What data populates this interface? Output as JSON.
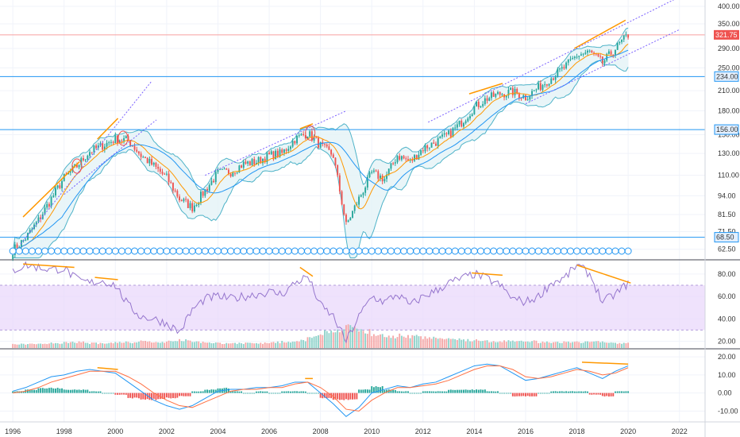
{
  "chart_data": [
    {
      "type": "candlestick",
      "panel": "price",
      "title": "",
      "ylabel": "",
      "y_scale": "log",
      "ylim": [
        58,
        420
      ],
      "yticks": [
        "400.00",
        "350.00",
        "290.00",
        "250.00",
        "210.00",
        "180.00",
        "150.00",
        "130.00",
        "110.00",
        "94.00",
        "81.50",
        "71.50",
        "62.50"
      ],
      "xlim": [
        1995.5,
        2023
      ],
      "xticks": [
        "1996",
        "1998",
        "2000",
        "2002",
        "2004",
        "2006",
        "2008",
        "2010",
        "2012",
        "2014",
        "2016",
        "2018",
        "2020",
        "2022"
      ],
      "last_price": "321.75",
      "last_price_color": "#ef5350",
      "up_color": "#26a69a",
      "down_color": "#ef5350",
      "horizontal_levels": [
        {
          "label": "234.00",
          "value": 234,
          "color": "#2196f3"
        },
        {
          "label": "156.00",
          "value": 156,
          "color": "#2196f3"
        },
        {
          "label": "68.50",
          "value": 68.5,
          "color": "#2196f3"
        }
      ],
      "trendlines": [
        {
          "color": "#ff9800",
          "style": "solid",
          "from": [
            1996.4,
            80
          ],
          "to": [
            1998.6,
            122
          ]
        },
        {
          "color": "#ff9800",
          "style": "solid",
          "from": [
            1999.3,
            145
          ],
          "to": [
            2000.1,
            170
          ]
        },
        {
          "color": "#ff9800",
          "style": "solid",
          "from": [
            2007.2,
            157
          ],
          "to": [
            2007.7,
            163
          ]
        },
        {
          "color": "#ff9800",
          "style": "solid",
          "from": [
            2013.8,
            205
          ],
          "to": [
            2015.1,
            222
          ]
        },
        {
          "color": "#ff9800",
          "style": "solid",
          "from": [
            2017.9,
            290
          ],
          "to": [
            2019.9,
            360
          ]
        },
        {
          "color": "#7b61ff",
          "style": "dotted",
          "from": [
            1996.3,
            65
          ],
          "to": [
            2001.4,
            225
          ]
        },
        {
          "color": "#7b61ff",
          "style": "dotted",
          "from": [
            1998.0,
            95
          ],
          "to": [
            2001.6,
            168
          ]
        },
        {
          "color": "#7b61ff",
          "style": "dotted",
          "from": [
            2003.5,
            110
          ],
          "to": [
            2009.0,
            180
          ]
        },
        {
          "color": "#7b61ff",
          "style": "dotted",
          "from": [
            2012.2,
            165
          ],
          "to": [
            2022.0,
            430
          ]
        },
        {
          "color": "#7b61ff",
          "style": "dotted",
          "from": [
            2016.0,
            190
          ],
          "to": [
            2022.0,
            335
          ]
        }
      ],
      "circles": [
        {
          "x": 1998.5,
          "y": 118
        },
        {
          "x": 2000.3,
          "y": 146
        },
        {
          "x": 2007.6,
          "y": 152
        }
      ],
      "series": [
        {
          "name": "",
          "x": [
            1996.0,
            1996.5,
            1997.0,
            1997.5,
            1998.0,
            1998.5,
            1999.0,
            1999.5,
            2000.0,
            2000.5,
            2001.0,
            2001.5,
            2002.0,
            2002.5,
            2003.0,
            2003.5,
            2004.0,
            2004.5,
            2005.0,
            2005.5,
            2006.0,
            2006.5,
            2007.0,
            2007.5,
            2008.0,
            2008.5,
            2009.0,
            2009.5,
            2010.0,
            2010.5,
            2011.0,
            2011.5,
            2012.0,
            2012.5,
            2013.0,
            2013.5,
            2014.0,
            2014.5,
            2015.0,
            2015.5,
            2016.0,
            2016.5,
            2017.0,
            2017.5,
            2018.0,
            2018.5,
            2019.0,
            2019.5,
            2020.0
          ],
          "close": [
            62,
            68,
            78,
            92,
            108,
            118,
            132,
            138,
            145,
            144,
            128,
            118,
            108,
            92,
            86,
            98,
            112,
            113,
            120,
            122,
            128,
            130,
            145,
            152,
            138,
            128,
            75,
            92,
            112,
            107,
            128,
            122,
            135,
            142,
            150,
            165,
            185,
            198,
            205,
            208,
            200,
            215,
            232,
            250,
            275,
            282,
            260,
            290,
            321.75
          ]
        },
        {
          "name": "",
          "type": "line",
          "role": "moving-average-20",
          "color": "#ff9800"
        },
        {
          "name": "",
          "type": "line",
          "role": "moving-average-50",
          "color": "#2196f3"
        },
        {
          "name": "",
          "type": "band",
          "role": "bollinger-bands",
          "color": "#4fb3c8",
          "fill": "#e3f3f6"
        }
      ]
    },
    {
      "type": "line",
      "panel": "oscillator",
      "title": "",
      "ylabel": "",
      "ylim": [
        14,
        92
      ],
      "yticks": [
        "80.00",
        "60.00",
        "40.00",
        "20.00"
      ],
      "band": [
        30,
        70
      ],
      "band_color": "#e8d5fb",
      "line_color": "#9575cd",
      "x": [
        1996.0,
        1996.5,
        1997.0,
        1997.5,
        1998.0,
        1998.5,
        1999.0,
        1999.5,
        2000.0,
        2000.5,
        2001.0,
        2001.5,
        2002.0,
        2002.5,
        2003.0,
        2003.5,
        2004.0,
        2004.5,
        2005.0,
        2005.5,
        2006.0,
        2006.5,
        2007.0,
        2007.5,
        2008.0,
        2008.5,
        2009.0,
        2009.5,
        2010.0,
        2010.5,
        2011.0,
        2011.5,
        2012.0,
        2012.5,
        2013.0,
        2013.5,
        2014.0,
        2014.5,
        2015.0,
        2015.5,
        2016.0,
        2016.5,
        2017.0,
        2017.5,
        2018.0,
        2018.5,
        2019.0,
        2019.5,
        2020.0
      ],
      "values": [
        83,
        88,
        86,
        84,
        85,
        75,
        72,
        74,
        70,
        52,
        42,
        40,
        36,
        28,
        48,
        58,
        60,
        58,
        60,
        62,
        64,
        62,
        72,
        78,
        52,
        42,
        20,
        42,
        60,
        55,
        62,
        52,
        60,
        65,
        72,
        76,
        80,
        76,
        70,
        58,
        55,
        60,
        72,
        76,
        88,
        80,
        55,
        62,
        72
      ],
      "divergences": [
        {
          "color": "#ff9800",
          "from": [
            1996.4,
            89
          ],
          "to": [
            1998.4,
            86
          ]
        },
        {
          "color": "#ff9800",
          "from": [
            1999.2,
            77
          ],
          "to": [
            2000.1,
            75
          ]
        },
        {
          "color": "#ff9800",
          "from": [
            2007.2,
            86
          ],
          "to": [
            2007.7,
            78
          ]
        },
        {
          "color": "#ff9800",
          "from": [
            2013.9,
            81
          ],
          "to": [
            2015.1,
            79
          ]
        },
        {
          "color": "#ff9800",
          "from": [
            2018.0,
            88
          ],
          "to": [
            2020.1,
            72
          ]
        }
      ],
      "volume": [
        4,
        4,
        5,
        5,
        6,
        6,
        5,
        5,
        6,
        6,
        7,
        6,
        7,
        8,
        6,
        6,
        5,
        5,
        5,
        5,
        6,
        7,
        8,
        12,
        16,
        19,
        22,
        17,
        14,
        12,
        13,
        12,
        11,
        10,
        9,
        8,
        8,
        7,
        7,
        7,
        7,
        6,
        6,
        6,
        6,
        7,
        6,
        5,
        5
      ]
    },
    {
      "type": "line",
      "panel": "momentum",
      "title": "",
      "ylabel": "",
      "ylim": [
        -16,
        24
      ],
      "yticks": [
        "20.00",
        "10.00",
        "0.00",
        "-10.00"
      ],
      "x": [
        1996.0,
        1996.5,
        1997.0,
        1997.5,
        1998.0,
        1998.5,
        1999.0,
        1999.5,
        2000.0,
        2000.5,
        2001.0,
        2001.5,
        2002.0,
        2002.5,
        2003.0,
        2003.5,
        2004.0,
        2004.5,
        2005.0,
        2005.5,
        2006.0,
        2006.5,
        2007.0,
        2007.5,
        2008.0,
        2008.5,
        2009.0,
        2009.5,
        2010.0,
        2010.5,
        2011.0,
        2011.5,
        2012.0,
        2012.5,
        2013.0,
        2013.5,
        2014.0,
        2014.5,
        2015.0,
        2015.5,
        2016.0,
        2016.5,
        2017.0,
        2017.5,
        2018.0,
        2018.5,
        2019.0,
        2019.5,
        2020.0
      ],
      "series": [
        {
          "name": "",
          "color": "#2196f3",
          "values": [
            1,
            3,
            6,
            9,
            10,
            12,
            13,
            12,
            11,
            6,
            1,
            -4,
            -7,
            -9,
            -7,
            -3,
            1,
            2,
            2,
            3,
            3,
            4,
            6,
            6,
            0,
            -6,
            -13,
            -8,
            0,
            2,
            4,
            3,
            5,
            6,
            9,
            12,
            15,
            16,
            15,
            11,
            7,
            8,
            10,
            12,
            14,
            11,
            8,
            12,
            15
          ]
        },
        {
          "name": "",
          "color": "#ff7043",
          "values": [
            0,
            1,
            3,
            6,
            8,
            10,
            12,
            12,
            12,
            9,
            5,
            0,
            -4,
            -7,
            -8,
            -5,
            -2,
            1,
            2,
            2,
            3,
            3,
            5,
            6,
            3,
            -2,
            -9,
            -10,
            -4,
            0,
            3,
            3,
            4,
            5,
            7,
            10,
            13,
            15,
            15,
            13,
            9,
            8,
            9,
            11,
            13,
            12,
            10,
            11,
            14
          ]
        }
      ],
      "histogram": [
        1,
        2,
        3,
        3,
        2,
        2,
        1,
        0,
        -1,
        -3,
        -4,
        -4,
        -3,
        -2,
        1,
        2,
        3,
        1,
        0,
        1,
        0,
        1,
        1,
        0,
        -3,
        -4,
        -4,
        2,
        4,
        2,
        1,
        0,
        1,
        1,
        2,
        2,
        2,
        1,
        0,
        -2,
        -2,
        0,
        1,
        1,
        1,
        -1,
        -2,
        1,
        1
      ],
      "divergences": [
        {
          "color": "#ff9800",
          "from": [
            1999.3,
            14
          ],
          "to": [
            2000.1,
            13
          ]
        },
        {
          "color": "#ff9800",
          "from": [
            2007.4,
            8
          ],
          "to": [
            2007.7,
            8
          ]
        },
        {
          "color": "#ff9800",
          "from": [
            2018.2,
            17
          ],
          "to": [
            2020.0,
            16
          ]
        }
      ]
    }
  ]
}
